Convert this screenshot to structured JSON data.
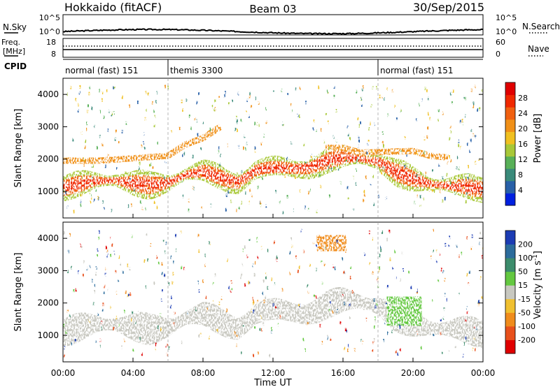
{
  "header": {
    "station": "Hokkaido (fitACF)",
    "beam": "Beam 03",
    "date": "30/Sep/2015"
  },
  "noise_panel": {
    "left_label": "N.Sky",
    "right_label": "N.Search",
    "ticks_left": [
      "10^5",
      "10^0"
    ],
    "ticks_right": [
      "10^5",
      "10^0"
    ]
  },
  "freq_panel": {
    "left_label_1": "Freq.",
    "left_label_2": "[MHz]",
    "right_label": "Nave",
    "ticks_left": [
      "18",
      "8"
    ],
    "ticks_right": [
      "60",
      "0"
    ]
  },
  "cpid": {
    "label": "CPID",
    "segments": [
      {
        "name": "normal (fast) 151",
        "start_hour": 0,
        "end_hour": 6
      },
      {
        "name": "themis 3300",
        "start_hour": 6,
        "end_hour": 18
      },
      {
        "name": "normal (fast) 151",
        "start_hour": 18,
        "end_hour": 24
      }
    ]
  },
  "x_axis": {
    "label": "Time UT",
    "ticks": [
      "00:00",
      "04:00",
      "08:00",
      "12:00",
      "16:00",
      "20:00",
      "00:00"
    ]
  },
  "panels": {
    "power": {
      "ylabel": "Slant Range [km]",
      "yticks": [
        "1000",
        "2000",
        "3000",
        "4000"
      ],
      "colorbar_label": "Power [dB]",
      "colorbar_ticks": [
        "4",
        "8",
        "12",
        "16",
        "20",
        "24",
        "28"
      ]
    },
    "velocity": {
      "ylabel": "Slant Range [km]",
      "yticks": [
        "1000",
        "2000",
        "3000",
        "4000"
      ],
      "colorbar_label_a": "Velocity [m s",
      "colorbar_label_sup": "-1",
      "colorbar_label_b": "]",
      "colorbar_ticks": [
        "200",
        "100",
        "50",
        "15",
        "-15",
        "-50",
        "-100",
        "-200"
      ]
    }
  },
  "colors": {
    "power_scale": [
      "#0020e0",
      "#2860a8",
      "#3a8a7a",
      "#58b058",
      "#a8c838",
      "#f0c020",
      "#f09018",
      "#f06010",
      "#f02800",
      "#e00000"
    ],
    "velocity_scale": [
      "#1c3cb4",
      "#2c6c9c",
      "#3c8c6c",
      "#64c840",
      "#c8c8c0",
      "#f0c030",
      "#f08c1c",
      "#e8501c",
      "#e00000"
    ]
  },
  "chart_data": [
    {
      "type": "heatmap",
      "name": "Power",
      "x_unit": "hours UT",
      "y_unit": "km",
      "xlim": [
        0,
        24
      ],
      "ylim": [
        180,
        4500
      ],
      "zlim": [
        0,
        30
      ],
      "main_echo_band_km": [
        [
          0,
          1150
        ],
        [
          1,
          1200
        ],
        [
          2,
          1300
        ],
        [
          3,
          1350
        ],
        [
          4,
          1250
        ],
        [
          5,
          1200
        ],
        [
          6,
          1300
        ],
        [
          7,
          1500
        ],
        [
          8,
          1550
        ],
        [
          9,
          1450
        ],
        [
          10,
          1350
        ],
        [
          11,
          1650
        ],
        [
          12,
          1650
        ],
        [
          13,
          1700
        ],
        [
          14,
          1800
        ],
        [
          15,
          1950
        ],
        [
          16,
          2000
        ],
        [
          17,
          2000
        ],
        [
          18,
          1950
        ],
        [
          19,
          1600
        ],
        [
          20,
          1400
        ],
        [
          21,
          1250
        ],
        [
          22,
          1150
        ],
        [
          23,
          1100
        ],
        [
          24,
          1100
        ]
      ],
      "upper_echo_band_km": [
        [
          0,
          1950
        ],
        [
          2,
          1950
        ],
        [
          6,
          2100
        ],
        [
          7,
          2450
        ],
        [
          8,
          2650
        ],
        [
          9,
          3000
        ],
        [
          15,
          2350
        ],
        [
          16,
          2350
        ],
        [
          17,
          2200
        ],
        [
          20,
          2250
        ],
        [
          21,
          2100
        ],
        [
          22,
          2050
        ]
      ]
    },
    {
      "type": "heatmap",
      "name": "Velocity",
      "x_unit": "hours UT",
      "y_unit": "km",
      "xlim": [
        0,
        24
      ],
      "ylim": [
        180,
        4500
      ],
      "zlim": [
        -200,
        200
      ],
      "dominant_value": "ground scatter near 0 m/s",
      "notable_features": [
        {
          "hours": [
            18.5,
            20.5
          ],
          "range_km": [
            1300,
            2200
          ],
          "velocity_ms": 30
        },
        {
          "hours": [
            14.5,
            16.2
          ],
          "range_km": [
            3600,
            4100
          ],
          "velocity_ms": -80
        }
      ]
    }
  ]
}
